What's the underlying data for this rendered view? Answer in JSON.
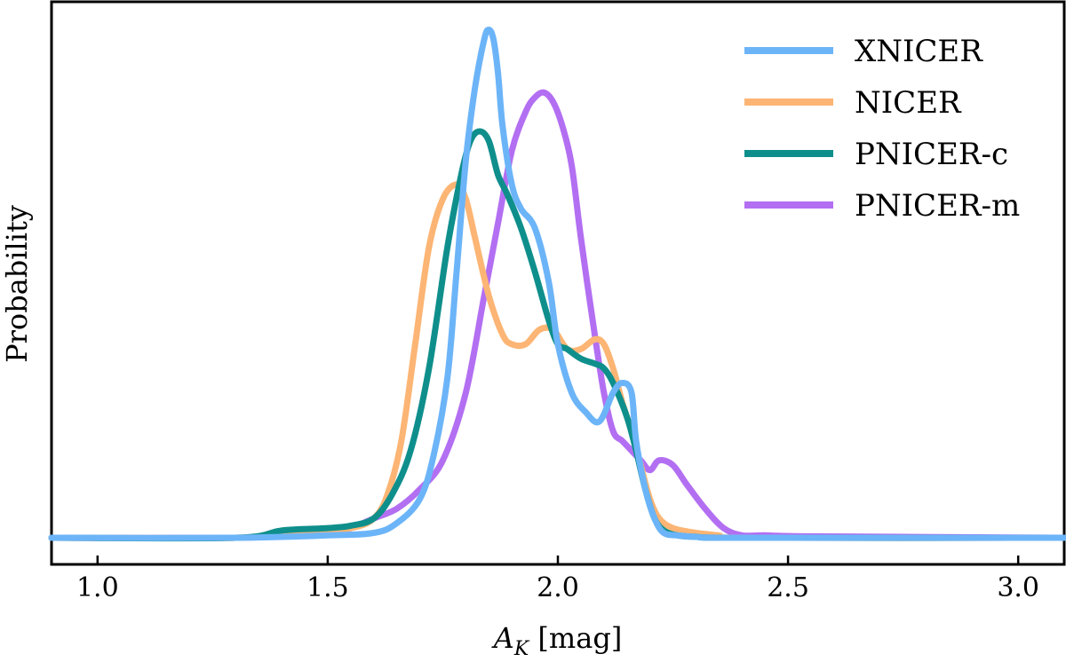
{
  "chart_data": {
    "type": "line",
    "title": "",
    "xlabel_main": "A",
    "xlabel_sub": "K",
    "xlabel_unit": " [mag]",
    "ylabel": "Probability",
    "xlim": [
      0.9,
      3.1
    ],
    "ylim": [
      0,
      1.06
    ],
    "x_ticks": [
      1.0,
      1.5,
      2.0,
      2.5,
      3.0
    ],
    "x_tick_labels": [
      "1.0",
      "1.5",
      "2.0",
      "2.5",
      "3.0"
    ],
    "legend_position": "top-right",
    "series": [
      {
        "name": "PNICER-m",
        "color": "#b36ff2",
        "x": [
          0.9,
          1.3,
          1.4,
          1.5,
          1.55,
          1.6,
          1.65,
          1.7,
          1.75,
          1.8,
          1.84,
          1.87,
          1.9,
          1.93,
          1.95,
          1.97,
          1.99,
          2.01,
          2.03,
          2.05,
          2.08,
          2.1,
          2.12,
          2.14,
          2.16,
          2.18,
          2.2,
          2.22,
          2.25,
          2.28,
          2.32,
          2.36,
          2.4,
          2.45,
          2.55,
          3.1
        ],
        "values": [
          0.0,
          0.0,
          0.005,
          0.01,
          0.02,
          0.04,
          0.06,
          0.1,
          0.16,
          0.3,
          0.5,
          0.65,
          0.8,
          0.88,
          0.91,
          0.92,
          0.9,
          0.85,
          0.77,
          0.62,
          0.42,
          0.3,
          0.22,
          0.2,
          0.18,
          0.16,
          0.14,
          0.16,
          0.15,
          0.11,
          0.06,
          0.02,
          0.005,
          0.005,
          0.003,
          0.0
        ]
      },
      {
        "name": "NICER",
        "color": "#fcb574",
        "x": [
          0.9,
          1.3,
          1.45,
          1.55,
          1.6,
          1.63,
          1.66,
          1.69,
          1.72,
          1.75,
          1.78,
          1.8,
          1.82,
          1.85,
          1.88,
          1.9,
          1.93,
          1.96,
          1.99,
          2.02,
          2.05,
          2.08,
          2.1,
          2.12,
          2.14,
          2.16,
          2.18,
          2.2,
          2.22,
          2.25,
          2.3,
          2.35,
          2.4,
          3.1
        ],
        "values": [
          0.0,
          0.0,
          0.01,
          0.02,
          0.04,
          0.09,
          0.2,
          0.4,
          0.6,
          0.7,
          0.73,
          0.7,
          0.62,
          0.5,
          0.42,
          0.4,
          0.4,
          0.43,
          0.43,
          0.39,
          0.39,
          0.41,
          0.4,
          0.35,
          0.28,
          0.22,
          0.15,
          0.08,
          0.04,
          0.02,
          0.01,
          0.005,
          0.0,
          0.0
        ]
      },
      {
        "name": "PNICER-c",
        "color": "#0f8f8c",
        "x": [
          0.9,
          1.3,
          1.4,
          1.5,
          1.55,
          1.6,
          1.64,
          1.68,
          1.72,
          1.76,
          1.79,
          1.81,
          1.83,
          1.85,
          1.87,
          1.89,
          1.92,
          1.95,
          1.98,
          2.0,
          2.02,
          2.05,
          2.08,
          2.1,
          2.12,
          2.15,
          2.17,
          2.19,
          2.21,
          2.23,
          2.26,
          2.3,
          2.4,
          3.1
        ],
        "values": [
          0.0,
          0.0,
          0.015,
          0.02,
          0.025,
          0.04,
          0.09,
          0.18,
          0.35,
          0.6,
          0.75,
          0.82,
          0.84,
          0.82,
          0.75,
          0.71,
          0.64,
          0.55,
          0.45,
          0.4,
          0.39,
          0.37,
          0.36,
          0.35,
          0.32,
          0.25,
          0.18,
          0.1,
          0.04,
          0.015,
          0.005,
          0.002,
          0.0,
          0.0
        ]
      },
      {
        "name": "XNICER",
        "color": "#6cb4f8",
        "x": [
          0.9,
          1.3,
          1.5,
          1.6,
          1.65,
          1.7,
          1.73,
          1.76,
          1.78,
          1.8,
          1.82,
          1.84,
          1.85,
          1.86,
          1.87,
          1.88,
          1.9,
          1.92,
          1.95,
          1.98,
          2.0,
          2.03,
          2.06,
          2.09,
          2.12,
          2.14,
          2.16,
          2.17,
          2.19,
          2.21,
          2.23,
          2.26,
          2.3,
          2.4,
          3.1
        ],
        "values": [
          0.0,
          0.0,
          0.005,
          0.01,
          0.03,
          0.08,
          0.17,
          0.33,
          0.55,
          0.78,
          0.93,
          1.03,
          1.05,
          1.03,
          0.96,
          0.85,
          0.73,
          0.68,
          0.64,
          0.53,
          0.4,
          0.3,
          0.26,
          0.24,
          0.3,
          0.32,
          0.3,
          0.2,
          0.1,
          0.04,
          0.01,
          0.005,
          0.002,
          0.0,
          0.0
        ]
      }
    ],
    "legend_entries": [
      {
        "name": "XNICER",
        "color": "#6cb4f8"
      },
      {
        "name": "NICER",
        "color": "#fcb574"
      },
      {
        "name": "PNICER-c",
        "color": "#0f8f8c"
      },
      {
        "name": "PNICER-m",
        "color": "#b36ff2"
      }
    ]
  }
}
